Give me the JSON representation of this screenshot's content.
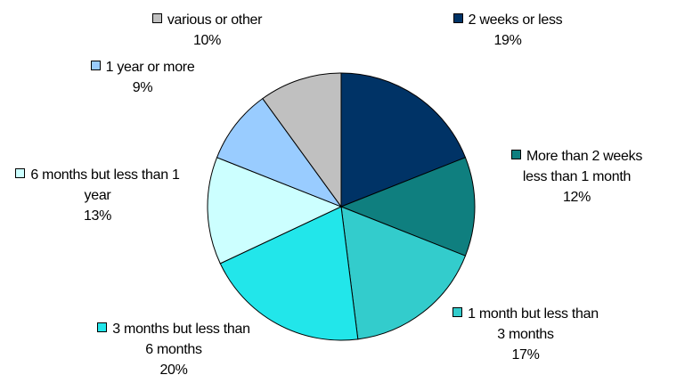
{
  "chart_data": {
    "type": "pie",
    "categories": [
      "2 weeks or less",
      "More than 2 weeks less than 1 month",
      "1 month but less than 3 months",
      "3 months but less than 6 months",
      "6 months but less than 1 year",
      "1 year or more",
      "various or other"
    ],
    "values": [
      19,
      12,
      17,
      20,
      13,
      9,
      10
    ],
    "value_labels": [
      "19%",
      "12%",
      "17%",
      "20%",
      "13%",
      "9%",
      "10%"
    ],
    "colors": [
      "#003366",
      "#0f7f7f",
      "#33cccc",
      "#22e6ea",
      "#ccffff",
      "#99ccff",
      "#c0c0c0"
    ]
  }
}
